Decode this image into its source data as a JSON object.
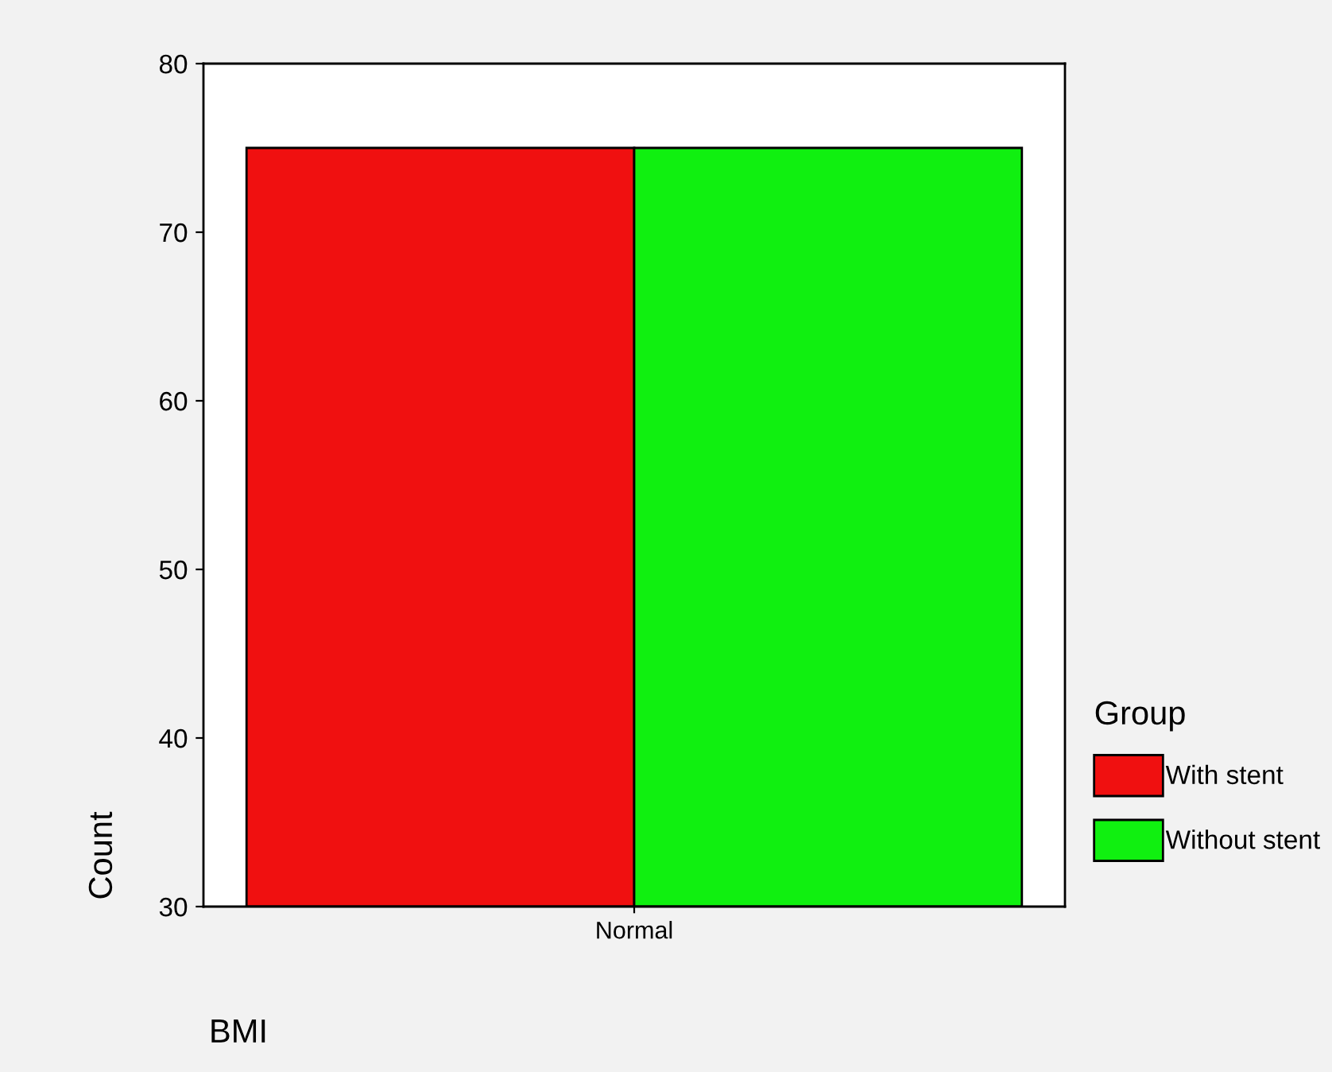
{
  "chart_data": {
    "type": "bar",
    "xlabel": "BMI",
    "ylabel": "Count",
    "legend_title": "Group",
    "categories": [
      "Normal"
    ],
    "series": [
      {
        "name": "With stent",
        "color": "#f01010",
        "values": [
          75
        ]
      },
      {
        "name": "Without stent",
        "color": "#10f010",
        "values": [
          75
        ]
      }
    ],
    "ylim": [
      30,
      80
    ],
    "yticks": [
      30,
      40,
      50,
      60,
      70,
      80
    ],
    "grid": false,
    "legend": "right"
  }
}
